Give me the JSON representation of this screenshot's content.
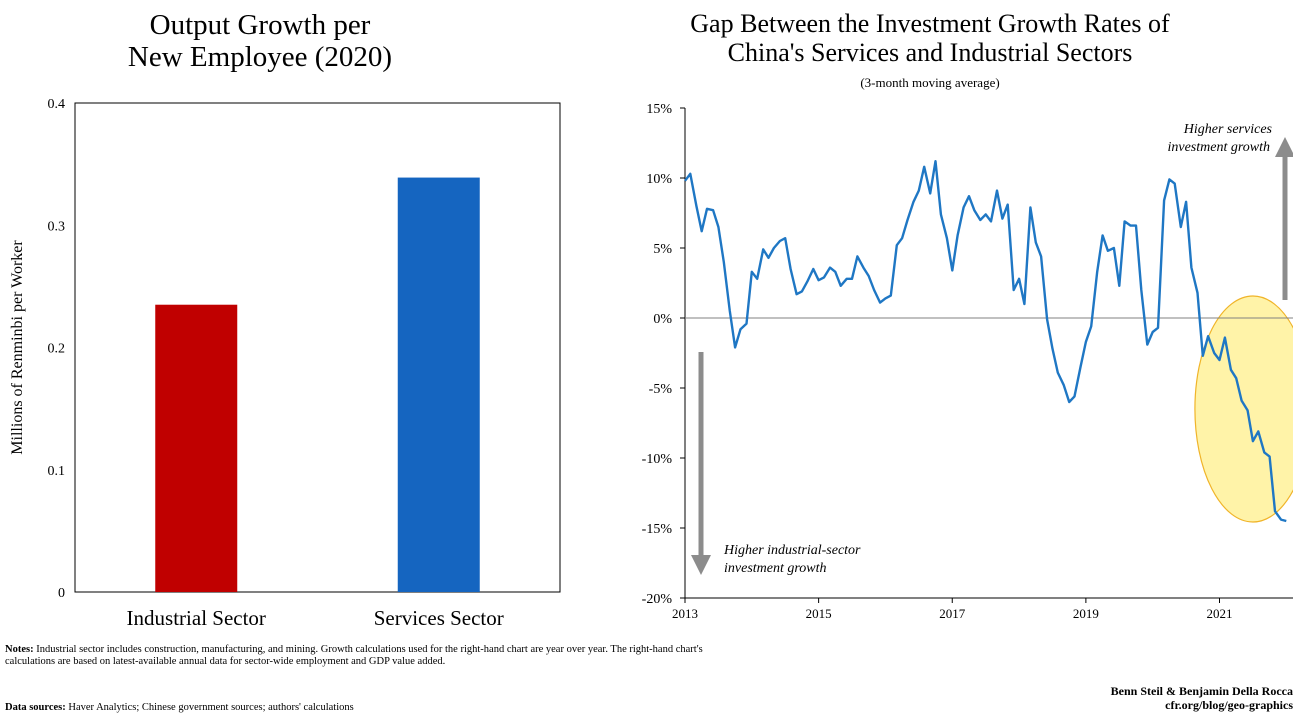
{
  "left_chart_title": [
    "Output Growth per",
    "New Employee (2020)"
  ],
  "right_chart_title": [
    "Gap Between the Investment Growth Rates of",
    "China's Services and Industrial Sectors"
  ],
  "right_chart_subtitle": "(3-month moving average)",
  "notes_label": "Notes:",
  "notes_text": " Industrial sector includes construction, manufacturing, and mining. Growth calculations used for the right-hand chart are year over year. The right-hand chart's calculations are based on latest-available annual data for sector-wide employment and GDP value added.",
  "sources_label": "Data sources:",
  "sources_text": " Haver Analytics; Chinese government sources; authors' calculations",
  "credit_authors": "Benn Steil & Benjamin Della Rocca",
  "credit_url": "cfr.org/blog/geo-graphics",
  "chart_data": [
    {
      "type": "bar",
      "categories": [
        "Industrial Sector",
        "Services Sector"
      ],
      "values": [
        0.235,
        0.339
      ],
      "colors": [
        "#c00000",
        "#1565c0"
      ],
      "ylabel": "Millions of Renminbi per Worker",
      "ylim": [
        0,
        0.4
      ],
      "yticks": [
        0,
        0.1,
        0.2,
        0.3,
        0.4
      ],
      "ytick_labels": [
        "0",
        "0.1",
        "0.2",
        "0.3",
        "0.4"
      ]
    },
    {
      "type": "line",
      "line_color": "#1f77c4",
      "highlight_color": "#fff3a8",
      "xlim": [
        2013,
        2022.1
      ],
      "ylim": [
        -20,
        15
      ],
      "xticks": [
        2013,
        2015,
        2017,
        2019,
        2021
      ],
      "xtick_labels": [
        "2013",
        "2015",
        "2017",
        "2019",
        "2021"
      ],
      "yticks": [
        15,
        10,
        5,
        0,
        -5,
        -10,
        -15,
        -20
      ],
      "ytick_labels": [
        "15%",
        "10%",
        "5%",
        "0%",
        "-5%",
        "-10%",
        "-15%",
        "-20%"
      ],
      "annotations": {
        "up": [
          "Higher services",
          "investment growth"
        ],
        "down": [
          "Higher industrial-sector",
          "investment growth"
        ]
      },
      "series": [
        {
          "x": [
            2013.0,
            2013.08,
            2013.17,
            2013.25,
            2013.33,
            2013.42,
            2013.5,
            2013.58,
            2013.67,
            2013.75,
            2013.83,
            2013.92,
            2014.0,
            2014.08,
            2014.17,
            2014.25,
            2014.33,
            2014.42,
            2014.5,
            2014.58,
            2014.67,
            2014.75,
            2014.83,
            2014.92,
            2015.0,
            2015.08,
            2015.17,
            2015.25,
            2015.33,
            2015.42,
            2015.5,
            2015.58,
            2015.67,
            2015.75,
            2015.83,
            2015.92,
            2016.0,
            2016.08,
            2016.17,
            2016.25,
            2016.33,
            2016.42,
            2016.5,
            2016.58,
            2016.67,
            2016.75,
            2016.83,
            2016.92,
            2017.0,
            2017.08,
            2017.17,
            2017.25,
            2017.33,
            2017.42,
            2017.5,
            2017.58,
            2017.67,
            2017.75,
            2017.83,
            2017.92,
            2018.0,
            2018.08,
            2018.17,
            2018.25,
            2018.33,
            2018.42,
            2018.5,
            2018.58,
            2018.67,
            2018.75,
            2018.83,
            2018.92,
            2019.0,
            2019.08,
            2019.17,
            2019.25,
            2019.33,
            2019.42,
            2019.5,
            2019.58,
            2019.67,
            2019.75,
            2019.83,
            2019.92,
            2020.0,
            2020.08,
            2020.17,
            2020.25,
            2020.33,
            2020.42,
            2020.5,
            2020.58,
            2020.67,
            2020.75,
            2020.83,
            2020.92,
            2021.0,
            2021.08,
            2021.17,
            2021.25,
            2021.33,
            2021.42,
            2021.5,
            2021.58,
            2021.67,
            2021.75,
            2021.83,
            2021.92,
            2022.0
          ],
          "y": [
            9.8,
            10.3,
            8.0,
            6.2,
            7.8,
            7.7,
            6.5,
            4.0,
            0.5,
            -2.1,
            -0.8,
            -0.4,
            3.3,
            2.8,
            4.9,
            4.3,
            5.0,
            5.5,
            5.7,
            3.5,
            1.7,
            1.9,
            2.6,
            3.5,
            2.7,
            2.9,
            3.6,
            3.3,
            2.3,
            2.8,
            2.8,
            4.4,
            3.6,
            3.0,
            2.0,
            1.1,
            1.4,
            1.6,
            5.2,
            5.7,
            7.0,
            8.3,
            9.1,
            10.8,
            8.9,
            11.2,
            7.4,
            5.7,
            3.4,
            5.9,
            7.9,
            8.7,
            7.7,
            7.0,
            7.4,
            6.9,
            9.1,
            7.1,
            8.1,
            2.0,
            2.8,
            1.0,
            7.9,
            5.4,
            4.4,
            -0.1,
            -2.2,
            -3.9,
            -4.8,
            -6.0,
            -5.6,
            -3.5,
            -1.7,
            -0.6,
            3.3,
            5.9,
            4.8,
            5.0,
            2.3,
            6.9,
            6.6,
            6.6,
            2.0,
            -1.9,
            -1.0,
            -0.7,
            8.4,
            9.9,
            9.6,
            6.5,
            8.3,
            3.6,
            1.8,
            -2.7,
            -1.3,
            -2.5,
            -3.0,
            -1.4,
            -3.7,
            -4.3,
            -5.9,
            -6.6,
            -8.8,
            -8.1,
            -9.6,
            -9.9,
            -13.8,
            -14.4,
            -14.5
          ]
        }
      ]
    }
  ]
}
